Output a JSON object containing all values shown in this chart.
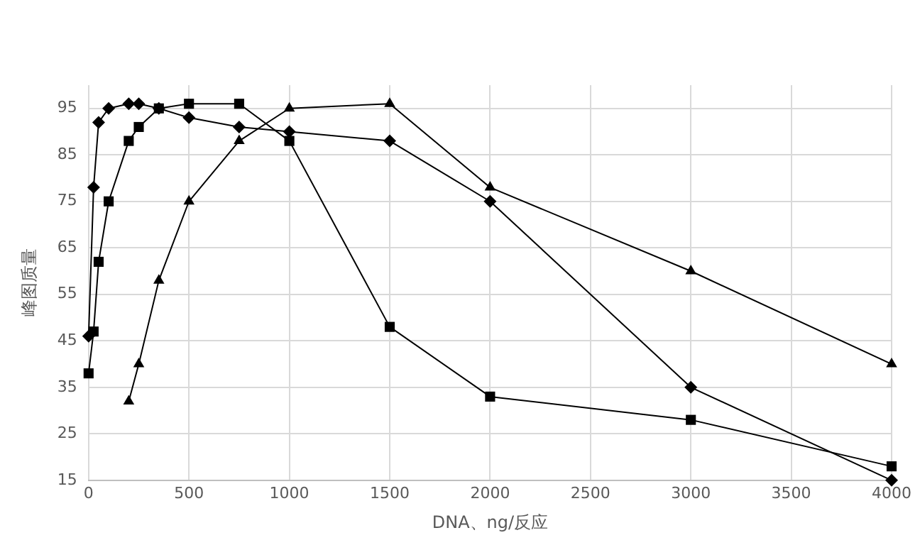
{
  "chart_data": {
    "type": "line",
    "xlabel": "DNA、ng/反应",
    "ylabel": "峰图质量",
    "xlim": [
      0,
      4000
    ],
    "xticks": [
      0,
      500,
      1000,
      1500,
      2000,
      2500,
      3000,
      3500,
      4000
    ],
    "ylim": [
      15,
      100
    ],
    "yticks": [
      15,
      25,
      35,
      45,
      55,
      65,
      75,
      85,
      95
    ],
    "grid": true,
    "legend": false,
    "line_style": "solid",
    "series": [
      {
        "color": "#000000",
        "marker": "diamond",
        "x": [
          0,
          25,
          50,
          100,
          200,
          250,
          350,
          500,
          750,
          1000,
          1500,
          2000,
          3000,
          4000
        ],
        "values": [
          46,
          78,
          92,
          95,
          96,
          96,
          95,
          93,
          91,
          90,
          88,
          75,
          35,
          15
        ]
      },
      {
        "color": "#000000",
        "marker": "square",
        "x": [
          0,
          25,
          50,
          100,
          200,
          250,
          350,
          500,
          750,
          1000,
          1500,
          2000,
          3000,
          4000
        ],
        "values": [
          38,
          47,
          62,
          75,
          88,
          91,
          95,
          96,
          96,
          88,
          48,
          33,
          28,
          18
        ]
      },
      {
        "color": "#000000",
        "marker": "triangle",
        "x": [
          200,
          250,
          350,
          500,
          750,
          1000,
          1500,
          2000,
          3000,
          4000
        ],
        "values": [
          32,
          40,
          58,
          75,
          88,
          95,
          96,
          78,
          60,
          40
        ]
      }
    ]
  }
}
